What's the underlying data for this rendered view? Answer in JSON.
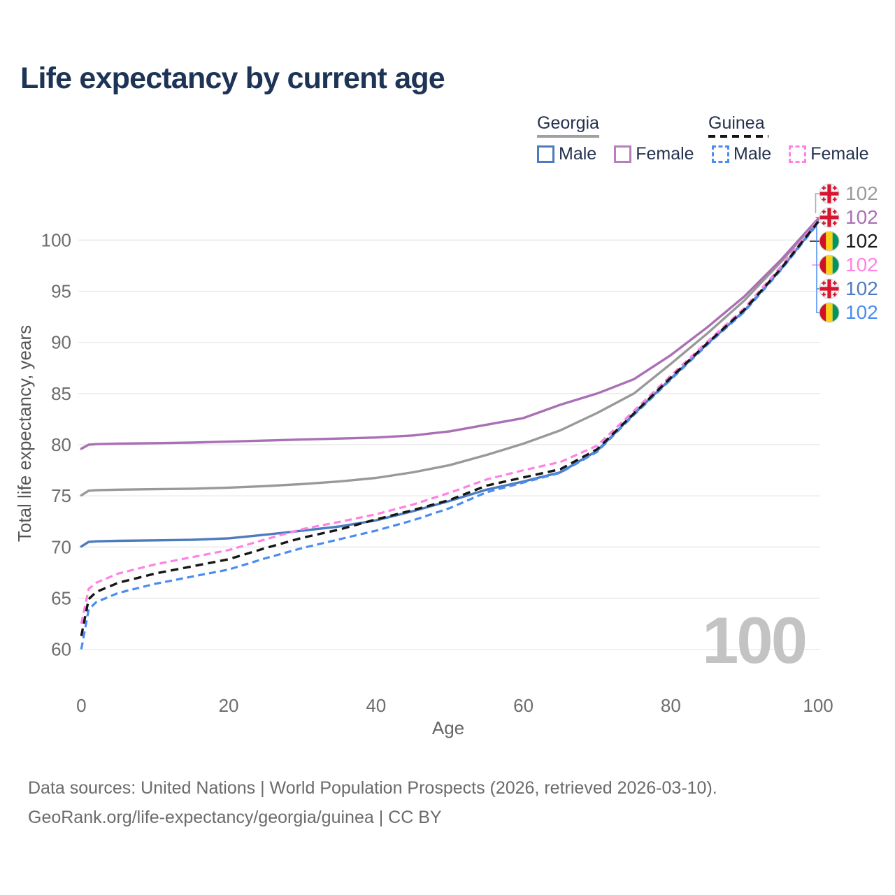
{
  "title": "Life expectancy by current age",
  "legend": {
    "groups": [
      {
        "label": "Georgia",
        "underline_style": "solid",
        "underline_color": "#a0a0a0",
        "items": [
          {
            "label": "Male",
            "color": "#4d7cbe",
            "dashed": false
          },
          {
            "label": "Female",
            "color": "#b77fbd",
            "dashed": false
          }
        ]
      },
      {
        "label": "Guinea",
        "underline_style": "dashed",
        "underline_color": "#141414",
        "items": [
          {
            "label": "Male",
            "color": "#4a8cf2",
            "dashed": true
          },
          {
            "label": "Female",
            "color": "#ff82e2",
            "dashed": true
          }
        ]
      }
    ]
  },
  "chart_data": {
    "type": "line",
    "title": "Life expectancy by current age",
    "xlabel": "Age",
    "ylabel": "Total life expectancy, years",
    "xticks": [
      0,
      20,
      40,
      60,
      80,
      100
    ],
    "yticks": [
      60,
      65,
      70,
      75,
      80,
      85,
      90,
      95,
      100
    ],
    "xlim": [
      0,
      100
    ],
    "ylim": [
      58,
      103.5
    ],
    "grid": "horizontal",
    "legend_position": "top-right",
    "watermark": "100",
    "x": [
      0,
      1,
      2,
      5,
      10,
      15,
      20,
      25,
      30,
      35,
      40,
      45,
      50,
      55,
      60,
      65,
      70,
      75,
      80,
      85,
      90,
      95,
      100
    ],
    "series": [
      {
        "name": "Georgia Total",
        "country": "georgia",
        "sex": "both",
        "color": "#999999",
        "dash": null,
        "width": 3.4,
        "values": [
          75.05,
          75.5,
          75.55,
          75.6,
          75.65,
          75.7,
          75.8,
          75.95,
          76.15,
          76.4,
          76.75,
          77.3,
          78.0,
          79.0,
          80.1,
          81.4,
          83.1,
          85.0,
          87.9,
          90.9,
          94.1,
          97.9,
          102.0
        ]
      },
      {
        "name": "Georgia Female",
        "country": "georgia",
        "sex": "female",
        "color": "#aa70b5",
        "dash": null,
        "width": 3.4,
        "values": [
          79.6,
          80.0,
          80.05,
          80.1,
          80.15,
          80.2,
          80.3,
          80.4,
          80.5,
          80.6,
          80.7,
          80.9,
          81.3,
          81.95,
          82.6,
          83.9,
          85.0,
          86.4,
          88.75,
          91.5,
          94.5,
          98.1,
          102.1
        ]
      },
      {
        "name": "Georgia Male",
        "country": "georgia",
        "sex": "male",
        "color": "#4d7cbe",
        "dash": null,
        "width": 3.4,
        "values": [
          70.05,
          70.5,
          70.55,
          70.6,
          70.65,
          70.7,
          70.85,
          71.2,
          71.6,
          72.0,
          72.6,
          73.5,
          74.5,
          75.6,
          76.4,
          77.3,
          79.4,
          83.0,
          86.45,
          89.9,
          93.1,
          97.2,
          101.75
        ]
      },
      {
        "name": "Guinea Male",
        "country": "guinea",
        "sex": "male",
        "color": "#4a8cf2",
        "dash": "10 6",
        "width": 3.2,
        "values": [
          60.0,
          63.9,
          64.6,
          65.5,
          66.4,
          67.1,
          67.8,
          68.9,
          69.9,
          70.75,
          71.6,
          72.6,
          73.8,
          75.35,
          76.3,
          77.25,
          79.3,
          82.9,
          86.35,
          89.8,
          93.0,
          97.1,
          101.65
        ]
      },
      {
        "name": "Guinea Female",
        "country": "guinea",
        "sex": "female",
        "color": "#ff82e2",
        "dash": "10 6",
        "width": 3.2,
        "values": [
          62.5,
          65.9,
          66.5,
          67.4,
          68.3,
          69.0,
          69.7,
          70.75,
          71.75,
          72.45,
          73.2,
          74.15,
          75.3,
          76.6,
          77.5,
          78.3,
          79.9,
          83.3,
          86.75,
          90.1,
          93.35,
          97.45,
          101.95
        ]
      },
      {
        "name": "Guinea Total",
        "country": "guinea",
        "sex": "both",
        "color": "#161616",
        "dash": "11 7",
        "width": 3.4,
        "values": [
          61.3,
          64.9,
          65.6,
          66.5,
          67.4,
          68.1,
          68.8,
          69.9,
          70.9,
          71.7,
          72.7,
          73.6,
          74.6,
          76.0,
          76.8,
          77.6,
          79.55,
          83.05,
          86.55,
          89.95,
          93.2,
          97.25,
          101.8
        ]
      }
    ]
  },
  "end_labels": [
    {
      "value": "102",
      "flag": "georgia",
      "color": "#9a9a9a"
    },
    {
      "value": "102",
      "flag": "georgia",
      "color": "#aa70b5"
    },
    {
      "value": "102",
      "flag": "guinea",
      "color": "#1a1a1a"
    },
    {
      "value": "102",
      "flag": "guinea",
      "color": "#ff82e2"
    },
    {
      "value": "102",
      "flag": "georgia",
      "color": "#4d7cbe"
    },
    {
      "value": "102",
      "flag": "guinea",
      "color": "#4a8cf2"
    }
  ],
  "footer": {
    "line1": "Data sources: United Nations | World Population Prospects (2026, retrieved 2026-03-10).",
    "line2": "GeoRank.org/life-expectancy/georgia/guinea | CC BY"
  }
}
